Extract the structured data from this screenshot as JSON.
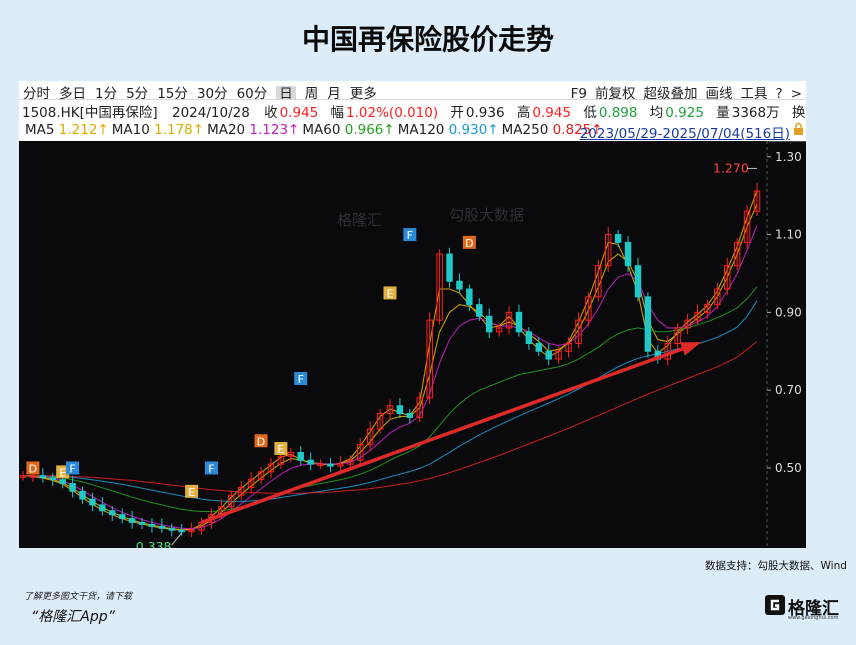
{
  "title": "中国再保险股价走势",
  "toolbar": {
    "periods": [
      "分时",
      "多日",
      "1分",
      "5分",
      "15分",
      "30分",
      "60分",
      "日",
      "周",
      "月",
      "更多"
    ],
    "active_period": "日",
    "tools": [
      "F9",
      "前复权",
      "超级叠加",
      "画线",
      "工具",
      "?",
      ">"
    ]
  },
  "quote": {
    "code_name": "1508.HK[中国再保险]",
    "date": "2024/10/28",
    "close_label": "收",
    "close": "0.945",
    "change_label": "幅",
    "change": "1.02%(0.010)",
    "open_label": "开",
    "open": "0.936",
    "high_label": "高",
    "high": "0.945",
    "low_label": "低",
    "low": "0.898",
    "avg_label": "均",
    "avg": "0.925",
    "volume_label": "量",
    "volume": "3368万",
    "turnover_label": "换"
  },
  "ma": [
    {
      "label": "MA5",
      "value": "1.212↑",
      "color": "#e0a800"
    },
    {
      "label": "MA10",
      "value": "1.178↑",
      "color": "#d4b000"
    },
    {
      "label": "MA20",
      "value": "1.123↑",
      "color": "#c020c0"
    },
    {
      "label": "MA60",
      "value": "0.966↑",
      "color": "#20a020"
    },
    {
      "label": "MA120",
      "value": "0.930↑",
      "color": "#1a9ad0"
    },
    {
      "label": "MA250",
      "value": "0.825↑",
      "color": "#e02020"
    }
  ],
  "date_range": "2023/05/29-2025/07/04(516日)",
  "watermarks": [
    "格隆汇",
    "勾股大数据"
  ],
  "source_note": "数据支持：勾股大数据、Wind",
  "download_note": "了解更多图文干货，请下载",
  "app_name": "“格隆汇App”",
  "brand": {
    "name": "格隆汇",
    "url": "www.gelonghui.com"
  },
  "colors": {
    "up": "#ff2020",
    "down": "#20c8c8",
    "arrow": "#e02a2a",
    "marker_d": "#e06a1a",
    "marker_e": "#e0b040",
    "marker_f": "#2a8ad8"
  },
  "chart_data": {
    "type": "candlestick",
    "y_axis": {
      "ticks": [
        "1.30",
        "1.10",
        "0.90",
        "0.70",
        "0.50"
      ],
      "ylim": [
        0.32,
        1.32
      ]
    },
    "close_series": [
      0.48,
      0.48,
      0.475,
      0.47,
      0.46,
      0.44,
      0.42,
      0.405,
      0.39,
      0.38,
      0.37,
      0.36,
      0.355,
      0.35,
      0.345,
      0.34,
      0.338,
      0.34,
      0.36,
      0.38,
      0.4,
      0.43,
      0.45,
      0.47,
      0.49,
      0.51,
      0.53,
      0.54,
      0.52,
      0.51,
      0.51,
      0.505,
      0.51,
      0.52,
      0.56,
      0.6,
      0.64,
      0.66,
      0.64,
      0.63,
      0.68,
      0.88,
      1.05,
      0.98,
      0.96,
      0.92,
      0.89,
      0.85,
      0.86,
      0.9,
      0.85,
      0.82,
      0.8,
      0.78,
      0.8,
      0.82,
      0.88,
      0.94,
      1.02,
      1.1,
      1.08,
      1.02,
      0.94,
      0.8,
      0.78,
      0.82,
      0.86,
      0.88,
      0.9,
      0.92,
      0.96,
      1.02,
      1.08,
      1.16,
      1.212
    ],
    "ma_lines": [
      {
        "name": "MA5",
        "values": [
          0.48,
          0.478,
          0.474,
          0.468,
          0.458,
          0.442,
          0.424,
          0.406,
          0.392,
          0.38,
          0.37,
          0.362,
          0.356,
          0.35,
          0.346,
          0.342,
          0.34,
          0.342,
          0.355,
          0.376,
          0.398,
          0.425,
          0.448,
          0.468,
          0.488,
          0.508,
          0.528,
          0.535,
          0.522,
          0.512,
          0.51,
          0.508,
          0.512,
          0.524,
          0.556,
          0.594,
          0.632,
          0.652,
          0.642,
          0.635,
          0.67,
          0.82,
          0.96,
          0.96,
          0.95,
          0.92,
          0.89,
          0.86,
          0.865,
          0.89,
          0.86,
          0.83,
          0.805,
          0.785,
          0.8,
          0.825,
          0.875,
          0.935,
          1.005,
          1.08,
          1.075,
          1.02,
          0.95,
          0.83,
          0.795,
          0.815,
          0.85,
          0.875,
          0.895,
          0.918,
          0.955,
          1.01,
          1.07,
          1.145,
          1.212
        ]
      },
      {
        "name": "MA10",
        "values": [
          0.48,
          0.479,
          0.476,
          0.471,
          0.462,
          0.448,
          0.431,
          0.414,
          0.399,
          0.386,
          0.375,
          0.366,
          0.359,
          0.353,
          0.348,
          0.344,
          0.341,
          0.342,
          0.35,
          0.366,
          0.386,
          0.41,
          0.432,
          0.454,
          0.474,
          0.494,
          0.512,
          0.524,
          0.521,
          0.514,
          0.511,
          0.509,
          0.511,
          0.519,
          0.54,
          0.568,
          0.6,
          0.625,
          0.632,
          0.633,
          0.655,
          0.74,
          0.85,
          0.9,
          0.92,
          0.915,
          0.9,
          0.875,
          0.865,
          0.875,
          0.865,
          0.845,
          0.825,
          0.8,
          0.805,
          0.82,
          0.855,
          0.905,
          0.965,
          1.03,
          1.05,
          1.03,
          0.98,
          0.88,
          0.83,
          0.825,
          0.845,
          0.865,
          0.885,
          0.905,
          0.94,
          0.99,
          1.05,
          1.12,
          1.178
        ]
      },
      {
        "name": "MA20",
        "values": [
          0.48,
          0.48,
          0.478,
          0.474,
          0.467,
          0.456,
          0.442,
          0.427,
          0.412,
          0.398,
          0.386,
          0.376,
          0.367,
          0.36,
          0.354,
          0.349,
          0.345,
          0.344,
          0.347,
          0.356,
          0.37,
          0.388,
          0.408,
          0.428,
          0.447,
          0.466,
          0.484,
          0.499,
          0.507,
          0.51,
          0.511,
          0.51,
          0.511,
          0.515,
          0.527,
          0.545,
          0.567,
          0.59,
          0.605,
          0.615,
          0.635,
          0.69,
          0.77,
          0.83,
          0.865,
          0.88,
          0.885,
          0.875,
          0.865,
          0.865,
          0.86,
          0.85,
          0.835,
          0.82,
          0.815,
          0.82,
          0.84,
          0.87,
          0.91,
          0.96,
          0.99,
          1.0,
          0.98,
          0.92,
          0.88,
          0.86,
          0.86,
          0.865,
          0.875,
          0.89,
          0.915,
          0.955,
          1.0,
          1.06,
          1.123
        ]
      },
      {
        "name": "MA60",
        "values": [
          0.48,
          0.48,
          0.479,
          0.478,
          0.475,
          0.47,
          0.464,
          0.457,
          0.449,
          0.441,
          0.433,
          0.425,
          0.418,
          0.411,
          0.405,
          0.399,
          0.394,
          0.39,
          0.388,
          0.388,
          0.39,
          0.394,
          0.4,
          0.407,
          0.415,
          0.424,
          0.433,
          0.442,
          0.449,
          0.455,
          0.46,
          0.465,
          0.47,
          0.476,
          0.484,
          0.494,
          0.506,
          0.52,
          0.532,
          0.543,
          0.557,
          0.58,
          0.61,
          0.64,
          0.665,
          0.685,
          0.7,
          0.71,
          0.72,
          0.73,
          0.74,
          0.745,
          0.75,
          0.755,
          0.76,
          0.768,
          0.78,
          0.795,
          0.81,
          0.83,
          0.845,
          0.855,
          0.86,
          0.855,
          0.85,
          0.85,
          0.855,
          0.86,
          0.868,
          0.876,
          0.886,
          0.898,
          0.912,
          0.935,
          0.966
        ]
      },
      {
        "name": "MA120",
        "values": [
          0.48,
          0.48,
          0.48,
          0.479,
          0.478,
          0.476,
          0.473,
          0.47,
          0.466,
          0.462,
          0.458,
          0.453,
          0.448,
          0.443,
          0.438,
          0.433,
          0.428,
          0.424,
          0.42,
          0.417,
          0.415,
          0.414,
          0.414,
          0.415,
          0.417,
          0.42,
          0.424,
          0.428,
          0.432,
          0.436,
          0.44,
          0.444,
          0.448,
          0.452,
          0.457,
          0.463,
          0.47,
          0.477,
          0.484,
          0.491,
          0.499,
          0.51,
          0.525,
          0.54,
          0.556,
          0.571,
          0.585,
          0.598,
          0.61,
          0.622,
          0.634,
          0.645,
          0.656,
          0.667,
          0.678,
          0.69,
          0.703,
          0.717,
          0.731,
          0.746,
          0.76,
          0.772,
          0.782,
          0.788,
          0.794,
          0.8,
          0.806,
          0.812,
          0.819,
          0.827,
          0.836,
          0.848,
          0.862,
          0.89,
          0.93
        ]
      },
      {
        "name": "MA250",
        "values": [
          0.48,
          0.48,
          0.48,
          0.48,
          0.479,
          0.478,
          0.477,
          0.476,
          0.474,
          0.472,
          0.47,
          0.468,
          0.465,
          0.462,
          0.459,
          0.456,
          0.453,
          0.45,
          0.447,
          0.444,
          0.442,
          0.44,
          0.438,
          0.437,
          0.436,
          0.435,
          0.435,
          0.435,
          0.435,
          0.436,
          0.437,
          0.438,
          0.44,
          0.442,
          0.444,
          0.447,
          0.45,
          0.454,
          0.458,
          0.462,
          0.467,
          0.473,
          0.48,
          0.488,
          0.496,
          0.505,
          0.514,
          0.523,
          0.532,
          0.542,
          0.552,
          0.562,
          0.572,
          0.582,
          0.592,
          0.602,
          0.613,
          0.624,
          0.635,
          0.646,
          0.657,
          0.668,
          0.679,
          0.69,
          0.7,
          0.71,
          0.72,
          0.73,
          0.74,
          0.75,
          0.76,
          0.772,
          0.785,
          0.805,
          0.825
        ]
      }
    ],
    "annotations": [
      {
        "text": "1.270",
        "at_index": 74,
        "value": 1.27
      },
      {
        "text": "0.338",
        "at_index": 16,
        "value": 0.338
      }
    ],
    "markers": [
      {
        "label": "D",
        "index": 1,
        "value": 0.5,
        "kind": "d"
      },
      {
        "label": "E",
        "index": 4,
        "value": 0.49,
        "kind": "e"
      },
      {
        "label": "F",
        "index": 5,
        "value": 0.5,
        "kind": "f"
      },
      {
        "label": "E",
        "index": 17,
        "value": 0.44,
        "kind": "e"
      },
      {
        "label": "F",
        "index": 19,
        "value": 0.5,
        "kind": "f"
      },
      {
        "label": "D",
        "index": 24,
        "value": 0.57,
        "kind": "d"
      },
      {
        "label": "E",
        "index": 26,
        "value": 0.55,
        "kind": "e"
      },
      {
        "label": "F",
        "index": 28,
        "value": 0.73,
        "kind": "f"
      },
      {
        "label": "E",
        "index": 37,
        "value": 0.95,
        "kind": "e"
      },
      {
        "label": "F",
        "index": 39,
        "value": 1.1,
        "kind": "f"
      },
      {
        "label": "D",
        "index": 45,
        "value": 1.08,
        "kind": "d"
      }
    ],
    "trend_arrow": {
      "from": {
        "index": 18,
        "value": 0.36
      },
      "to": {
        "index": 68,
        "value": 0.82
      }
    }
  }
}
